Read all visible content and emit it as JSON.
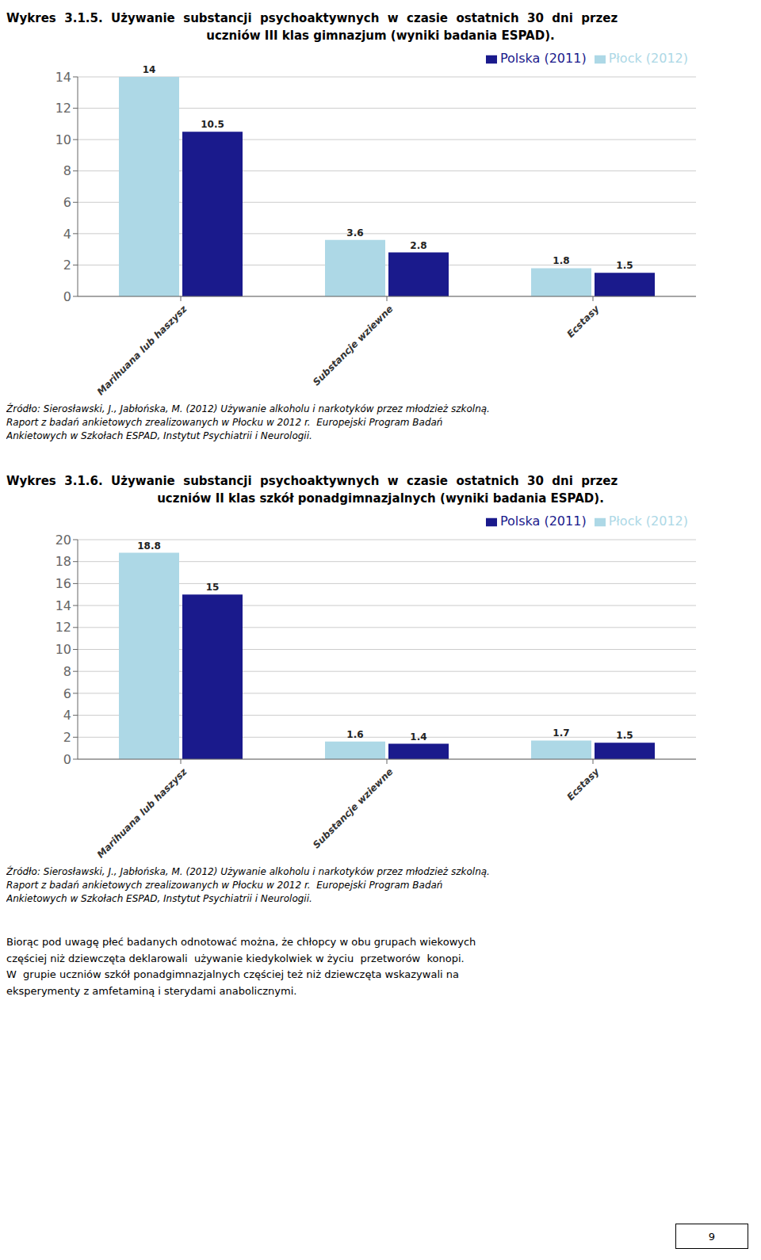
{
  "chart_data": [
    {
      "type": "bar",
      "title": "Wykres  3.1.5.  Używanie  substancji  psychoaktywnych  w  czasie  ostatnich  30  dni  przez",
      "subtitle": "uczniów III klas gimnazjum (wyniki badania ESPAD).",
      "categories": [
        "Marihuana lub haszysz",
        "Substancje wziewne",
        "Ecstasy"
      ],
      "series": [
        {
          "name": "Płock (2012)",
          "color": "#ADD8E6",
          "values": [
            14,
            3.6,
            1.8
          ]
        },
        {
          "name": "Polska (2011)",
          "color": "#1A1A8C",
          "values": [
            10.5,
            2.8,
            1.5
          ]
        }
      ],
      "ylim": [
        0,
        14
      ],
      "yticks": [
        0,
        2,
        4,
        6,
        8,
        10,
        12,
        14
      ],
      "grid": true,
      "legend": "upper right",
      "data_labels": true,
      "annotations": [
        "Źródło: Sierosławski, J., Jabłońska, M. (2012) Używanie alkoholu i narkotyków przez młodzież szkolną.\nRaport z badań ankietowych zrealizowanych w Płocku w 2012 r.  Europejski Program Badań\nAnkietowych w Szkołach ESPAD, Instytut Psychiatrii i Neurologii."
      ]
    },
    {
      "type": "bar",
      "title": "Wykres  3.1.6.  Używanie  substancji  psychoaktywnych  w  czasie  ostatnich  30  dni  przez",
      "subtitle": "uczniów II klas szkół ponadgimnazjalnych (wyniki badania ESPAD).",
      "categories": [
        "Marihuana lub haszysz",
        "Substancje wziewne",
        "Ecstasy"
      ],
      "series": [
        {
          "name": "Płock (2012)",
          "color": "#ADD8E6",
          "values": [
            18.8,
            1.6,
            1.7
          ]
        },
        {
          "name": "Polska (2011)",
          "color": "#1A1A8C",
          "values": [
            15.0,
            1.4,
            1.5
          ]
        }
      ],
      "ylim": [
        0,
        20
      ],
      "yticks": [
        0,
        2,
        4,
        6,
        8,
        10,
        12,
        14,
        16,
        18,
        20
      ],
      "grid": true,
      "legend": "upper right",
      "data_labels": true,
      "annotations": [
        "Źródło: Sierosławski, J., Jabłońska, M. (2012) Używanie alkoholu i narkotyków przez młodzież szkolną.\nRaport z badań ankietowych zrealizowanych w Płocku w 2012 r.  Europejski Program Badań\nAnkietowych w Szkołach ESPAD, Instytut Psychiatrii i Neurologii."
      ]
    }
  ],
  "annotations": [
    "Biorąc pod uwagę płeć badanych odnotować można, że chłopcy w obu grupach wiekowych",
    "częściej niż dziewczęta deklarowali  używanie kiedykolwiek w życiu  przetworów  konopi.",
    "W  grupie uczniów szkół ponadgimnazjalnych częściej też niż dziewczęta wskazywali na",
    "eksperymenty z amfetaminą i sterydami anabolicznymi."
  ],
  "page_number": "9"
}
